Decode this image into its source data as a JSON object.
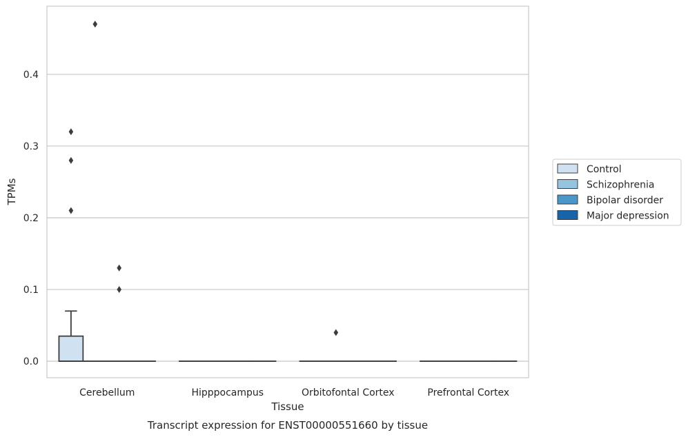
{
  "chart_data": {
    "type": "box",
    "caption": "Transcript expression for ENST00000551660 by tissue",
    "xlabel": "Tissue",
    "ylabel": "TPMs",
    "ylim": [
      -0.023,
      0.495
    ],
    "yticks": [
      0.0,
      0.1,
      0.2,
      0.3,
      0.4
    ],
    "ytick_labels": [
      "0.0",
      "0.1",
      "0.2",
      "0.3",
      "0.4"
    ],
    "grid": "horizontal",
    "legend_position": "right",
    "categories": [
      "Cerebellum",
      "Hipppocampus",
      "Orbitofontal Cortex",
      "Prefrontal Cortex"
    ],
    "series": [
      {
        "name": "Control",
        "color": "#d0e1f2",
        "boxes": [
          {
            "q1": 0.0,
            "median": 0.0,
            "q3": 0.035,
            "whisker_low": 0.0,
            "whisker_high": 0.07,
            "outliers": [
              0.21,
              0.28,
              0.32
            ]
          },
          {
            "q1": 0.0,
            "median": 0.0,
            "q3": 0.0,
            "whisker_low": 0.0,
            "whisker_high": 0.0,
            "outliers": []
          },
          {
            "q1": 0.0,
            "median": 0.0,
            "q3": 0.0,
            "whisker_low": 0.0,
            "whisker_high": 0.0,
            "outliers": []
          },
          {
            "q1": 0.0,
            "median": 0.0,
            "q3": 0.0,
            "whisker_low": 0.0,
            "whisker_high": 0.0,
            "outliers": []
          }
        ]
      },
      {
        "name": "Schizophrenia",
        "color": "#94c4df",
        "boxes": [
          {
            "q1": 0.0,
            "median": 0.0,
            "q3": 0.0,
            "whisker_low": 0.0,
            "whisker_high": 0.0,
            "outliers": [
              0.47
            ]
          },
          {
            "q1": 0.0,
            "median": 0.0,
            "q3": 0.0,
            "whisker_low": 0.0,
            "whisker_high": 0.0,
            "outliers": []
          },
          {
            "q1": 0.0,
            "median": 0.0,
            "q3": 0.0,
            "whisker_low": 0.0,
            "whisker_high": 0.0,
            "outliers": [
              0.04
            ]
          },
          {
            "q1": 0.0,
            "median": 0.0,
            "q3": 0.0,
            "whisker_low": 0.0,
            "whisker_high": 0.0,
            "outliers": []
          }
        ]
      },
      {
        "name": "Bipolar disorder",
        "color": "#4a98c9",
        "boxes": [
          {
            "q1": 0.0,
            "median": 0.0,
            "q3": 0.0,
            "whisker_low": 0.0,
            "whisker_high": 0.0,
            "outliers": [
              0.1,
              0.13
            ]
          },
          {
            "q1": 0.0,
            "median": 0.0,
            "q3": 0.0,
            "whisker_low": 0.0,
            "whisker_high": 0.0,
            "outliers": []
          },
          {
            "q1": 0.0,
            "median": 0.0,
            "q3": 0.0,
            "whisker_low": 0.0,
            "whisker_high": 0.0,
            "outliers": []
          },
          {
            "q1": 0.0,
            "median": 0.0,
            "q3": 0.0,
            "whisker_low": 0.0,
            "whisker_high": 0.0,
            "outliers": []
          }
        ]
      },
      {
        "name": "Major depression",
        "color": "#1764ab",
        "boxes": [
          {
            "q1": 0.0,
            "median": 0.0,
            "q3": 0.0,
            "whisker_low": 0.0,
            "whisker_high": 0.0,
            "outliers": []
          },
          {
            "q1": 0.0,
            "median": 0.0,
            "q3": 0.0,
            "whisker_low": 0.0,
            "whisker_high": 0.0,
            "outliers": []
          },
          {
            "q1": 0.0,
            "median": 0.0,
            "q3": 0.0,
            "whisker_low": 0.0,
            "whisker_high": 0.0,
            "outliers": []
          },
          {
            "q1": 0.0,
            "median": 0.0,
            "q3": 0.0,
            "whisker_low": 0.0,
            "whisker_high": 0.0,
            "outliers": []
          }
        ]
      }
    ],
    "colors": {
      "grid": "#cccccc",
      "frame": "#cccccc",
      "line": "#3d3d3d"
    }
  }
}
